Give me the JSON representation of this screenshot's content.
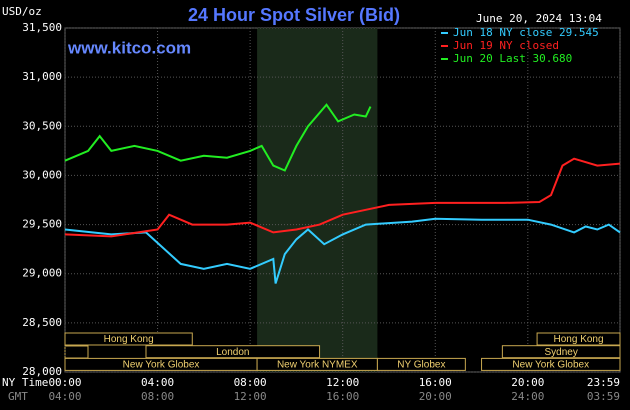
{
  "chart_data": {
    "type": "line",
    "title": "24 Hour Spot Silver (Bid)",
    "timestamp": "June 20, 2024 13:04",
    "y_label": "USD/oz",
    "watermark": "www.kitco.com",
    "x_label": "NY Time",
    "x2_label": "GMT",
    "xlim": [
      0,
      23.983
    ],
    "ylim": [
      28000,
      31500
    ],
    "yticks": [
      {
        "value": 28000,
        "label": "28,000"
      },
      {
        "value": 28500,
        "label": "28,500"
      },
      {
        "value": 29000,
        "label": "29,000"
      },
      {
        "value": 29500,
        "label": "29,500"
      },
      {
        "value": 30000,
        "label": "30,000"
      },
      {
        "value": 30500,
        "label": "30,500"
      },
      {
        "value": 31000,
        "label": "31,000"
      },
      {
        "value": 31500,
        "label": "31,500"
      }
    ],
    "xticks": [
      {
        "value": 0,
        "label": "00:00"
      },
      {
        "value": 4,
        "label": "04:00"
      },
      {
        "value": 8,
        "label": "08:00"
      },
      {
        "value": 12,
        "label": "12:00"
      },
      {
        "value": 16,
        "label": "16:00"
      },
      {
        "value": 20,
        "label": "20:00"
      },
      {
        "value": 23.983,
        "label": "23:59"
      }
    ],
    "x2tick_labels": [
      "04:00",
      "08:00",
      "12:00",
      "16:00",
      "20:00",
      "24:00",
      "03:59"
    ],
    "grid": true,
    "highlight": [
      8.3,
      13.5
    ],
    "series": [
      {
        "name": "Jun 18 NY close 29.545",
        "color": "#33ccff",
        "x": [
          0,
          2,
          3.5,
          5,
          6,
          7,
          8,
          9,
          9.1,
          9.5,
          10,
          10.5,
          11.2,
          12,
          13,
          15,
          16,
          18,
          20,
          21,
          22,
          22.5,
          23,
          23.5,
          23.983
        ],
        "values": [
          29450,
          29400,
          29420,
          29100,
          29050,
          29100,
          29050,
          29150,
          28900,
          29200,
          29350,
          29450,
          29300,
          29400,
          29500,
          29530,
          29560,
          29550,
          29550,
          29500,
          29420,
          29480,
          29450,
          29500,
          29420
        ]
      },
      {
        "name": "Jun 19 NY closed",
        "color": "#ff2020",
        "x": [
          0,
          2,
          4,
          4.5,
          5.5,
          7,
          8,
          9,
          10,
          11,
          12,
          13,
          14,
          16,
          19,
          20.5,
          21,
          21.5,
          22,
          23,
          23.983
        ],
        "values": [
          29400,
          29380,
          29450,
          29600,
          29500,
          29500,
          29520,
          29420,
          29450,
          29500,
          29600,
          29650,
          29700,
          29720,
          29720,
          29730,
          29800,
          30100,
          30170,
          30100,
          30120
        ]
      },
      {
        "name": "Jun 20 Last 30.680",
        "color": "#22ee22",
        "x": [
          0,
          1,
          1.5,
          2,
          3,
          4,
          5,
          6,
          7,
          8,
          8.5,
          9,
          9.5,
          10,
          10.5,
          11.3,
          11.8,
          12.5,
          13,
          13.2
        ],
        "values": [
          30150,
          30250,
          30400,
          30250,
          30300,
          30250,
          30150,
          30200,
          30180,
          30250,
          30300,
          30100,
          30050,
          30300,
          30500,
          30720,
          30550,
          30620,
          30600,
          30700
        ]
      }
    ],
    "sessions": [
      {
        "name": "Hong Kong",
        "row": 0,
        "start": 0,
        "end": 5.5
      },
      {
        "name": "Hong Kong",
        "row": 0,
        "start": 20.4,
        "end": 23.983
      },
      {
        "name": "London",
        "row": 1,
        "start": 3.5,
        "end": 11
      },
      {
        "name": "Sydney",
        "row": 1,
        "start": 18.9,
        "end": 23.983
      },
      {
        "name": "New York Globex",
        "row": 2,
        "start": 0,
        "end": 8.3
      },
      {
        "name": "New York NYMEX",
        "row": 2,
        "start": 8.3,
        "end": 13.5
      },
      {
        "name": "NY Globex",
        "row": 2,
        "start": 13.5,
        "end": 17.3
      },
      {
        "name": "New York Globex",
        "row": 2,
        "start": 18,
        "end": 23.983
      }
    ]
  }
}
